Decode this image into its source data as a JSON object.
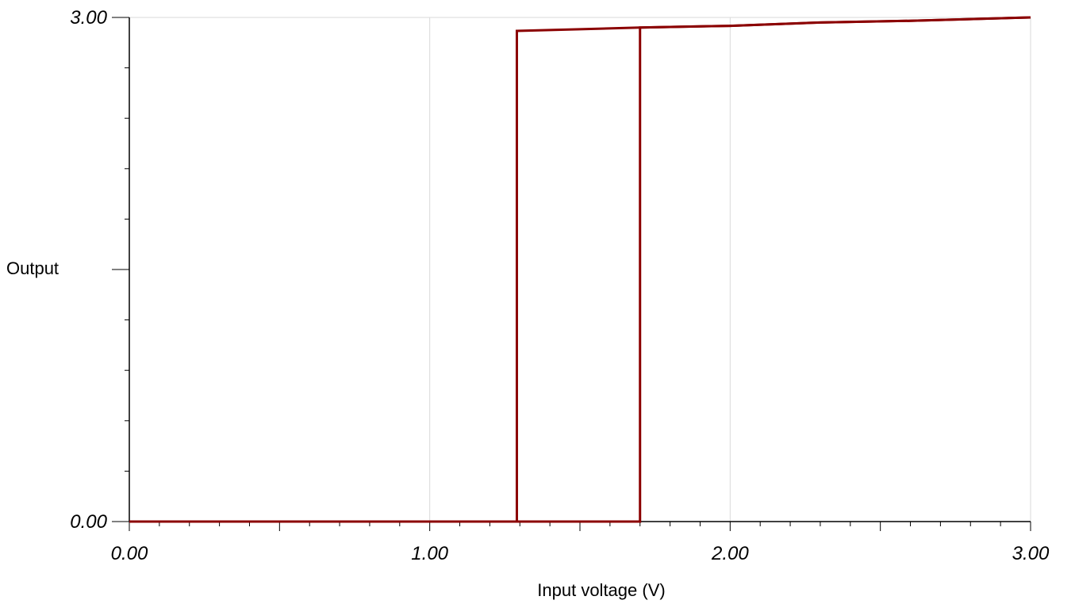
{
  "chart_data": {
    "type": "line",
    "title": "",
    "xlabel": "Input voltage (V)",
    "ylabel": "Output",
    "xlim": [
      0,
      3
    ],
    "ylim": [
      0,
      3
    ],
    "x_tick_labels": [
      {
        "value": 0,
        "label": "0.00"
      },
      {
        "value": 1,
        "label": "1.00"
      },
      {
        "value": 2,
        "label": "2.00"
      },
      {
        "value": 3,
        "label": "3.00"
      }
    ],
    "y_tick_labels": [
      {
        "value": 0,
        "label": "0.00"
      },
      {
        "value": 3,
        "label": "3.00"
      }
    ],
    "x_minor_step": 0.1,
    "y_minor_step": 0.3,
    "y_major_unlabeled": [
      1.5
    ],
    "grid": {
      "vertical": [
        1,
        2,
        3
      ],
      "horizontal": [
        3
      ]
    },
    "legend": "none",
    "series": [
      {
        "color": "#8b0000",
        "points": [
          [
            0.0,
            0.0
          ],
          [
            1.29,
            0.0
          ],
          [
            1.29,
            2.92
          ],
          [
            1.5,
            2.93
          ],
          [
            1.7,
            2.94
          ],
          [
            2.0,
            2.95
          ],
          [
            2.3,
            2.97
          ],
          [
            2.6,
            2.98
          ],
          [
            2.8,
            2.99
          ],
          [
            3.0,
            3.0
          ]
        ]
      },
      {
        "color": "#8b0000",
        "points": [
          [
            0.0,
            0.0
          ],
          [
            1.7,
            0.0
          ],
          [
            1.7,
            2.94
          ],
          [
            2.0,
            2.95
          ],
          [
            2.3,
            2.97
          ],
          [
            2.6,
            2.98
          ],
          [
            3.0,
            3.0
          ]
        ]
      }
    ]
  }
}
